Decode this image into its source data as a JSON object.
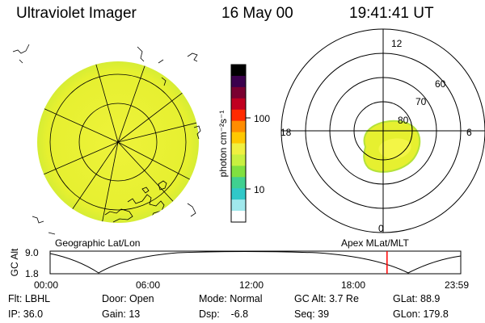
{
  "header": {
    "instrument": "Ultraviolet Imager",
    "date": "16 May 00",
    "time": "19:41:41 UT"
  },
  "colors": {
    "aurora_fill": "#e6f030",
    "aurora_edge": "#b4e23a",
    "limb_cyan": "#7ee7e1",
    "marker": "#ff0000"
  },
  "colorbar": {
    "unit_label": "photon cm⁻²s⁻¹",
    "tick_100": "100",
    "tick_10": "10",
    "palette": [
      "#000000",
      "#3b004d",
      "#7a0030",
      "#c00020",
      "#ff2a00",
      "#ff8c00",
      "#ffc800",
      "#f0f040",
      "#c8f040",
      "#80e040",
      "#40d090",
      "#30c8c8",
      "#a0e8ec",
      "#ffffff"
    ]
  },
  "polar": {
    "mlt_12": "12",
    "mlt_18": "18",
    "mlt_6": "6",
    "mlt_0": "0",
    "lat_60": "60",
    "lat_70": "70",
    "lat_80": "80"
  },
  "labels": {
    "geo": "Geographic Lat/Lon",
    "apex": "Apex MLat/MLT"
  },
  "timeline": {
    "y_axis_title": "GC Alt",
    "y_top": "9.0",
    "y_bottom": "1.8",
    "x_ticks": [
      "00:00",
      "06:00",
      "12:00",
      "18:00",
      "23:59"
    ],
    "marker_time_hours": 19.69,
    "range_hours": [
      0,
      24
    ],
    "altitude_range_re": [
      1.8,
      9.0
    ]
  },
  "footer": {
    "flt": "Flt: LBHL",
    "door": "Door: Open",
    "mode": "Mode: Normal",
    "gc_alt": "GC Alt: 3.7 Re",
    "glat": "GLat: 88.9",
    "ip": "IP: 36.0",
    "gain": "Gain: 13",
    "dsp": "Dsp:    -6.8",
    "seq": "Seq: 39",
    "glon": "GLon: 179.8"
  }
}
